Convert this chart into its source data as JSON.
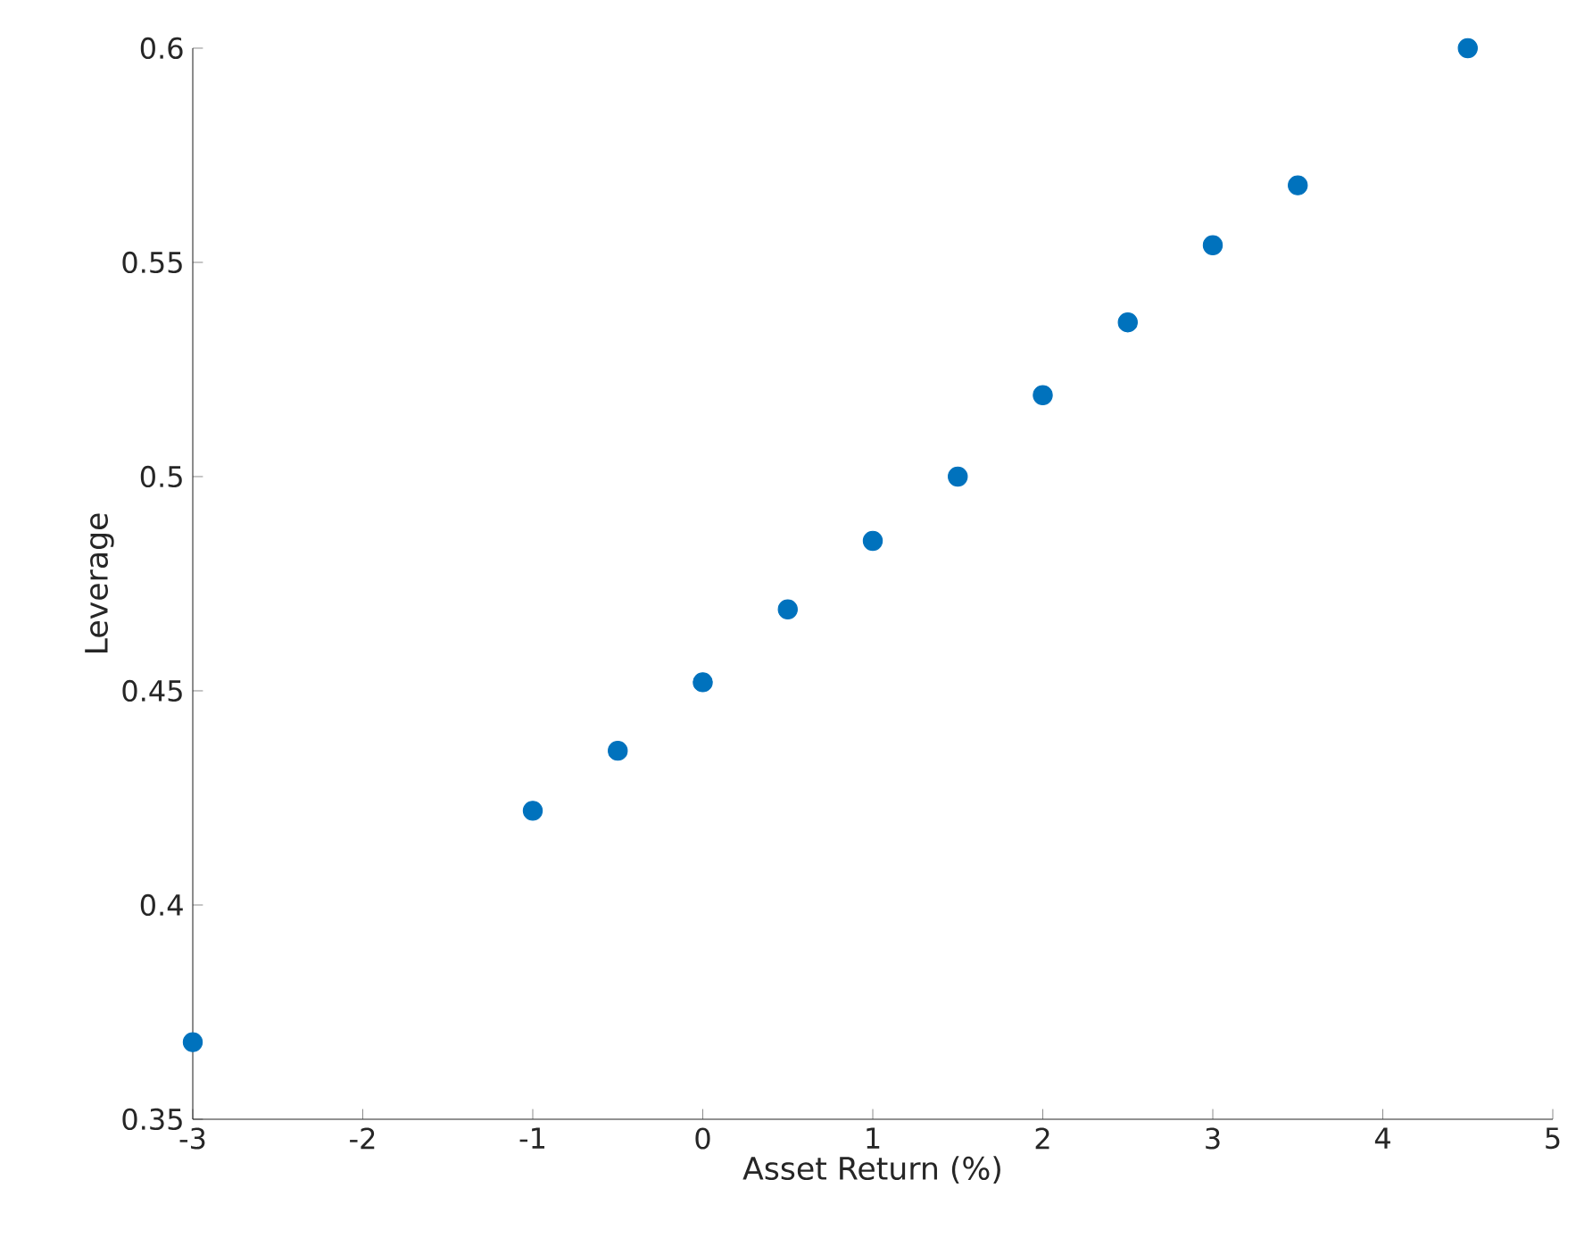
{
  "chart_data": {
    "type": "scatter",
    "xlabel": "Asset Return (%)",
    "ylabel": "Leverage",
    "x": [
      -3,
      -1,
      -0.5,
      0,
      0.5,
      1,
      1.5,
      2,
      2.5,
      3,
      3.5,
      4.5
    ],
    "series": [
      {
        "color": "#0072bd",
        "values": [
          0.368,
          0.422,
          0.436,
          0.452,
          0.469,
          0.485,
          0.5,
          0.519,
          0.536,
          0.554,
          0.568,
          0.6
        ]
      }
    ],
    "xlim": [
      -3,
      5
    ],
    "ylim": [
      0.35,
      0.6
    ],
    "xticks": [
      -3,
      -2,
      -1,
      0,
      1,
      2,
      3,
      4,
      5
    ],
    "yticks": [
      0.35,
      0.4,
      0.45,
      0.5,
      0.55,
      0.6
    ],
    "marker": "circle",
    "grid": false
  }
}
